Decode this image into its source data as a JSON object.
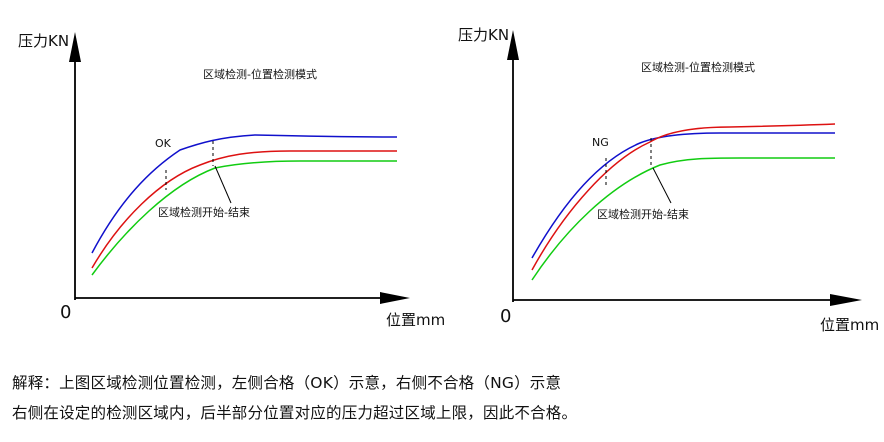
{
  "diagrams": [
    {
      "id": "left",
      "y_axis_label": "压力KN",
      "x_axis_label": "位置mm",
      "origin_label": "0",
      "title": "区域检测-位置检测模式",
      "result_label": "OK",
      "window_label": "区域检测开始-结束",
      "colors": {
        "upper": "#1010cc",
        "actual": "#dd1111",
        "lower": "#11cc11"
      }
    },
    {
      "id": "right",
      "y_axis_label": "压力KN",
      "x_axis_label": "位置mm",
      "origin_label": "0",
      "title": "区域检测-位置检测模式",
      "result_label": "NG",
      "window_label": "区域检测开始-结束",
      "colors": {
        "upper": "#1010cc",
        "actual": "#dd1111",
        "lower": "#11cc11"
      }
    }
  ],
  "caption": {
    "line1": "解释：上图区域检测位置检测，左侧合格（OK）示意，右侧不合格（NG）示意",
    "line2": "右侧在设定的检测区域内，后半部分位置对应的压力超过区域上限，因此不合格。"
  }
}
